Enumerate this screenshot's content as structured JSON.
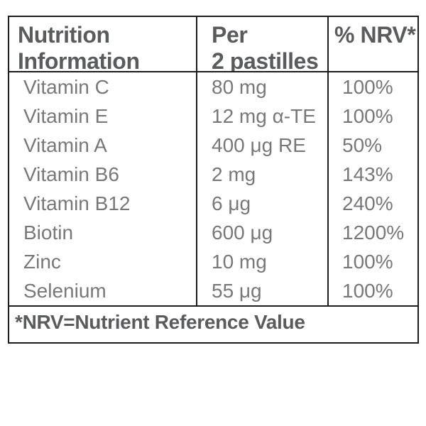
{
  "header": {
    "nutrient_col": "Nutrition\nInformation",
    "amount_col": "Per\n2 pastilles",
    "nrv_col": "% NRV*"
  },
  "rows": [
    {
      "name": "Vitamin C",
      "amount": "80 mg",
      "nrv": "100%"
    },
    {
      "name": "Vitamin E",
      "amount": "12 mg α-TE",
      "nrv": "100%"
    },
    {
      "name": "Vitamin A",
      "amount": "400 μg RE",
      "nrv": "50%"
    },
    {
      "name": "Vitamin B6",
      "amount": "2 mg",
      "nrv": "143%"
    },
    {
      "name": "Vitamin B12",
      "amount": "6 μg",
      "nrv": "240%"
    },
    {
      "name": "Biotin",
      "amount": "600 μg",
      "nrv": "1200%"
    },
    {
      "name": "Zinc",
      "amount": "10 mg",
      "nrv": "100%"
    },
    {
      "name": "Selenium",
      "amount": "55 μg",
      "nrv": "100%"
    }
  ],
  "footnote": "*NRV=Nutrient Reference Value",
  "colors": {
    "border": "#1d1d1d",
    "header_text": "#5a5b5d",
    "body_text": "#77787a",
    "background": "#ffffff"
  }
}
